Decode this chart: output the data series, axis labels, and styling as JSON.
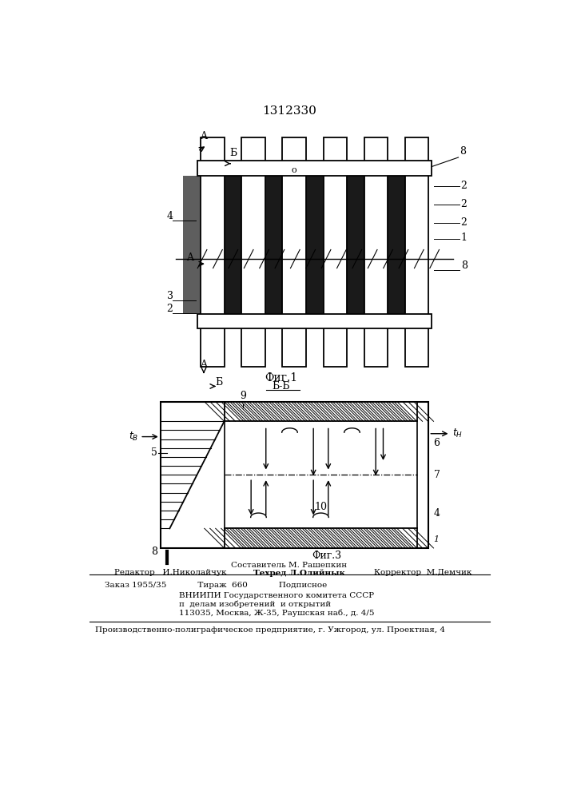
{
  "patent_number": "1312330",
  "fig1_label": "Фиг.1",
  "fig2_label": "Б-Б",
  "fig3_label": "Фиг.3",
  "footer_line1": "Составитель М. Рашепкин",
  "footer_line2_left": "Редактор   И.Николайчук",
  "footer_line2_mid": "Техред Л.Олийнык",
  "footer_line2_right": "Корректор  М.Демчик",
  "footer_line3": "Заказ 1955/35            Тираж  660            Подписное",
  "footer_line4": "ВНИИПИ Государственного комитета СССР",
  "footer_line5": "п  делам изобретений  и открытий",
  "footer_line6": "113035, Москва, Ж-35, Раушская наб., д. 4/5",
  "footer_bottom": "Производственно-полиграфическое предприятие, г. Ужгород, ул. Проектная, 4",
  "bg_color": "#ffffff",
  "line_color": "#000000"
}
